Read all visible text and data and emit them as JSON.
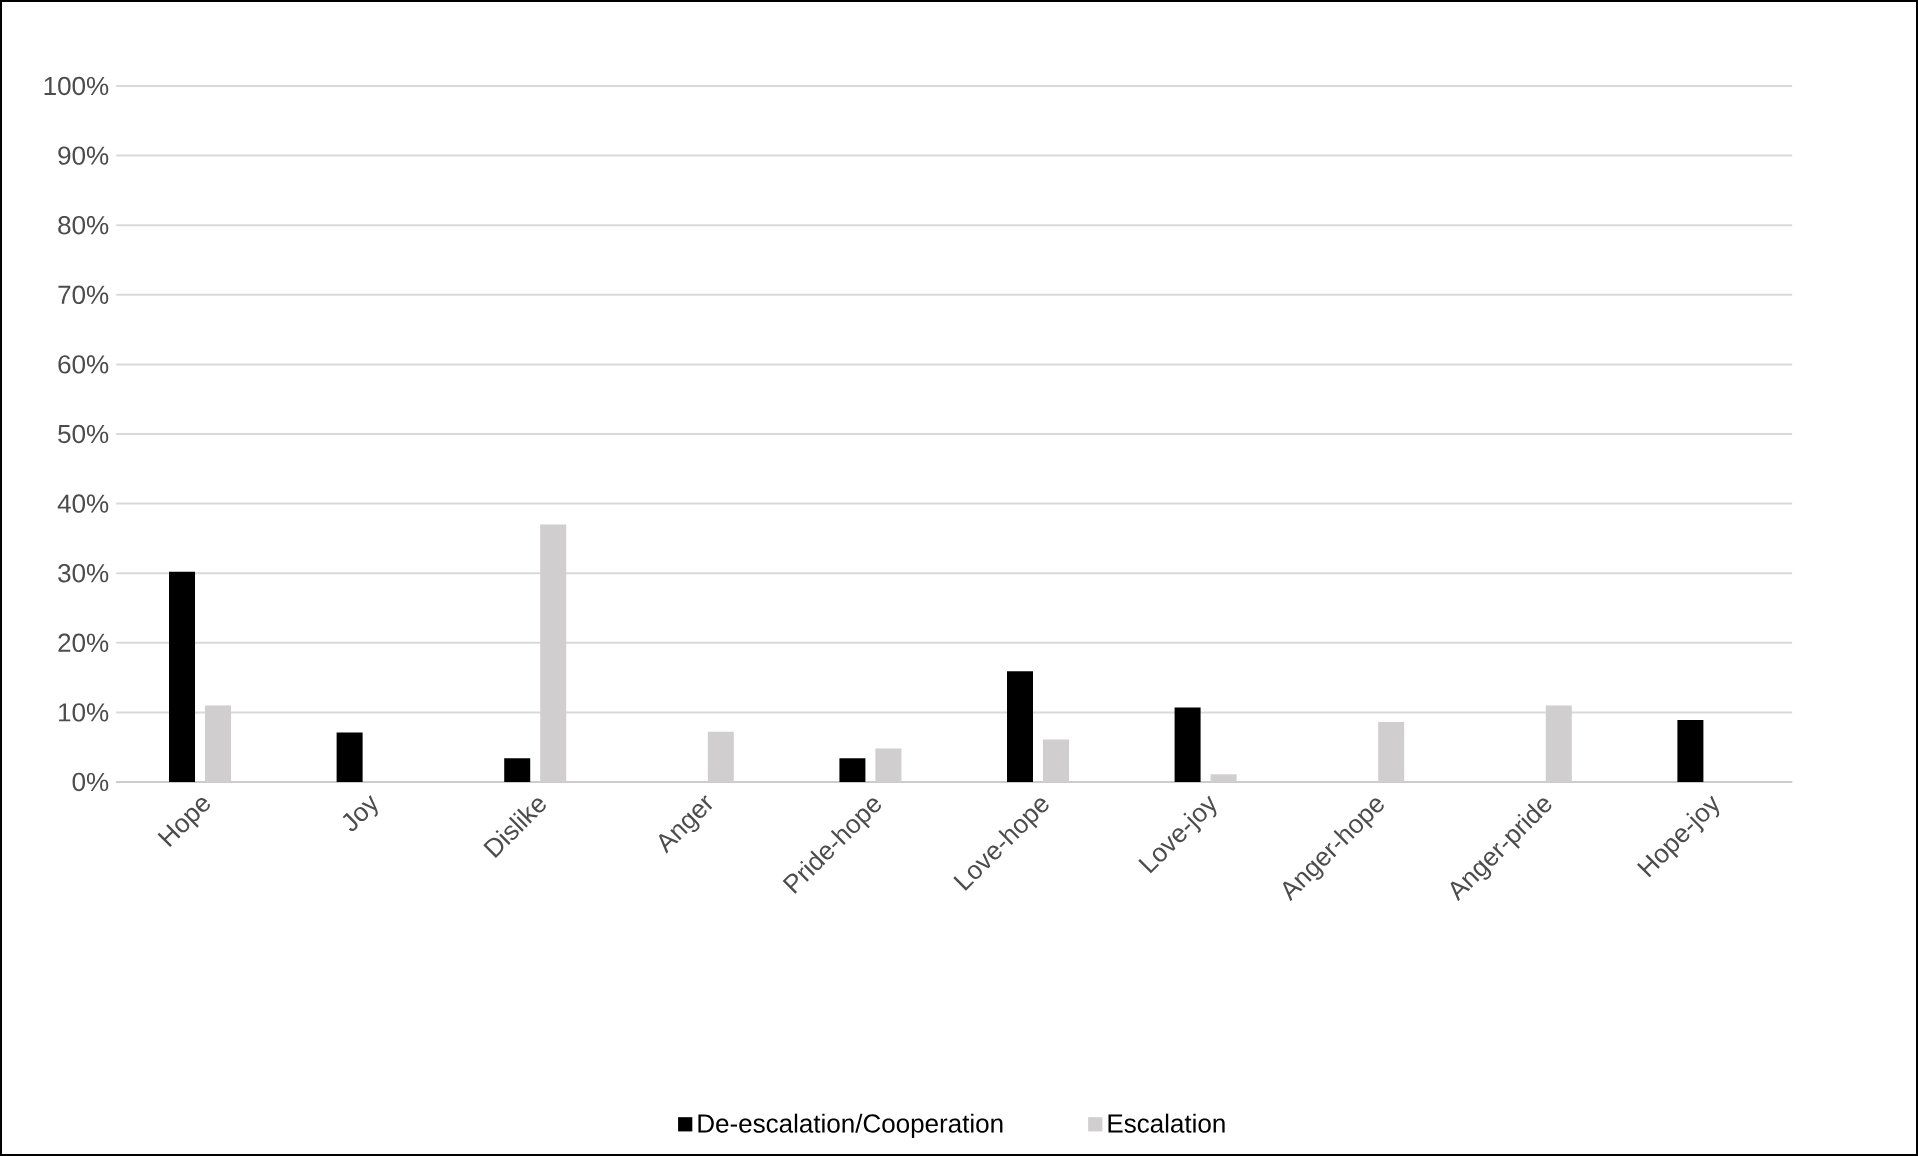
{
  "chart_data": {
    "type": "bar",
    "categories": [
      "Hope",
      "Joy",
      "Dislike",
      "Anger",
      "Pride-hope",
      "Love-hope",
      "Love-joy",
      "Anger-hope",
      "Anger-pride",
      "Hope-joy"
    ],
    "series": [
      {
        "name": "De-escalation/Cooperation",
        "color": "#000000",
        "values": [
          30.2,
          7.1,
          3.4,
          0,
          3.4,
          15.9,
          10.7,
          0,
          0,
          8.9
        ]
      },
      {
        "name": "Escalation",
        "color": "#d0cece",
        "values": [
          11.0,
          0,
          37.0,
          7.2,
          4.8,
          6.1,
          1.1,
          8.6,
          11.0,
          0
        ]
      }
    ],
    "ylim": [
      0,
      100
    ],
    "yticks": [
      {
        "value": 0,
        "label": "0%"
      },
      {
        "value": 10,
        "label": "10%"
      },
      {
        "value": 20,
        "label": "20%"
      },
      {
        "value": 30,
        "label": "30%"
      },
      {
        "value": 40,
        "label": "40%"
      },
      {
        "value": 50,
        "label": "50%"
      },
      {
        "value": 60,
        "label": "60%"
      },
      {
        "value": 70,
        "label": "70%"
      },
      {
        "value": 80,
        "label": "80%"
      },
      {
        "value": 90,
        "label": "90%"
      },
      {
        "value": 100,
        "label": "100%"
      }
    ],
    "grid": "y",
    "legend": "bottom"
  }
}
